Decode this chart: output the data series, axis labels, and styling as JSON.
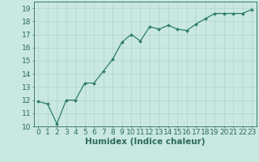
{
  "x": [
    0,
    1,
    2,
    3,
    4,
    5,
    6,
    7,
    8,
    9,
    10,
    11,
    12,
    13,
    14,
    15,
    16,
    17,
    18,
    19,
    20,
    21,
    22,
    23
  ],
  "y": [
    11.9,
    11.7,
    10.2,
    12.0,
    12.0,
    13.3,
    13.3,
    14.2,
    15.1,
    16.4,
    17.0,
    16.5,
    17.6,
    17.4,
    17.7,
    17.4,
    17.3,
    17.8,
    18.2,
    18.6,
    18.6,
    18.6,
    18.6,
    18.9
  ],
  "line_color": "#2e7d6e",
  "marker": "D",
  "marker_size": 2.0,
  "bg_color": "#c8e8e0",
  "grid_color": "#b0d4cc",
  "xlabel": "Humidex (Indice chaleur)",
  "xlim": [
    -0.5,
    23.5
  ],
  "ylim": [
    10,
    19.5
  ],
  "yticks": [
    10,
    11,
    12,
    13,
    14,
    15,
    16,
    17,
    18,
    19
  ],
  "xticks": [
    0,
    1,
    2,
    3,
    4,
    5,
    6,
    7,
    8,
    9,
    10,
    11,
    12,
    13,
    14,
    15,
    16,
    17,
    18,
    19,
    20,
    21,
    22,
    23
  ],
  "tick_color": "#2e6b5e",
  "label_color": "#2e6b5e",
  "tick_font_size": 6.5,
  "xlabel_font_size": 7.5
}
